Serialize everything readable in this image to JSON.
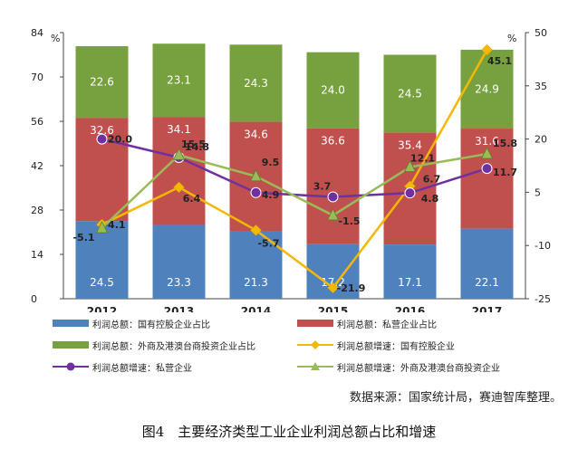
{
  "chart_data": {
    "type": "bar",
    "categories": [
      "2012",
      "2013",
      "2014",
      "2015",
      "2016",
      "2017"
    ],
    "left_axis": {
      "unit": "%",
      "min": 0,
      "max": 84,
      "ticks": [
        0,
        14,
        28,
        42,
        56,
        70,
        84
      ]
    },
    "right_axis": {
      "unit": "%",
      "min": -25,
      "max": 50,
      "ticks": [
        -25,
        -10,
        5,
        20,
        35,
        50
      ]
    },
    "stacked_series": [
      {
        "name": "利润总额：国有控股企业占比",
        "color": "#4f81bd",
        "values": [
          24.5,
          23.3,
          21.3,
          17.2,
          17.1,
          22.1
        ]
      },
      {
        "name": "利润总额：私营企业占比",
        "color": "#c0504d",
        "values": [
          32.6,
          34.1,
          34.6,
          36.6,
          35.4,
          31.6
        ]
      },
      {
        "name": "利润总额：外商及港澳台商投资企业占比",
        "color": "#77a03f",
        "values": [
          22.6,
          23.1,
          24.3,
          24.0,
          24.5,
          24.9
        ]
      }
    ],
    "line_series": [
      {
        "name": "利润总额增速：国有控股企业",
        "color": "#f5b800",
        "marker": "diamond",
        "values": [
          -4.1,
          6.4,
          -5.7,
          -21.9,
          6.7,
          45.1
        ]
      },
      {
        "name": "利润总额增速：私营企业",
        "color": "#7030a0",
        "marker": "circle",
        "values": [
          20.0,
          14.8,
          4.9,
          3.7,
          4.8,
          11.7
        ]
      },
      {
        "name": "利润总额增速：外商及港澳台商投资企业",
        "color": "#9bbb59",
        "marker": "triangle",
        "values": [
          -5.1,
          15.5,
          9.5,
          -1.5,
          12.1,
          15.8
        ]
      }
    ]
  },
  "legend_items": [
    {
      "label": "利润总额：国有控股企业占比"
    },
    {
      "label": "利润总额：私营企业占比"
    },
    {
      "label": "利润总额：外商及港澳台商投资企业占比"
    },
    {
      "label": "利润总额增速：国有控股企业"
    },
    {
      "label": "利润总额增速：私营企业"
    },
    {
      "label": "利润总额增速：外商及港澳台商投资企业"
    }
  ],
  "source": "数据来源：国家统计局，赛迪智库整理。",
  "caption": "图4　主要经济类型工业企业利润总额占比和增速"
}
